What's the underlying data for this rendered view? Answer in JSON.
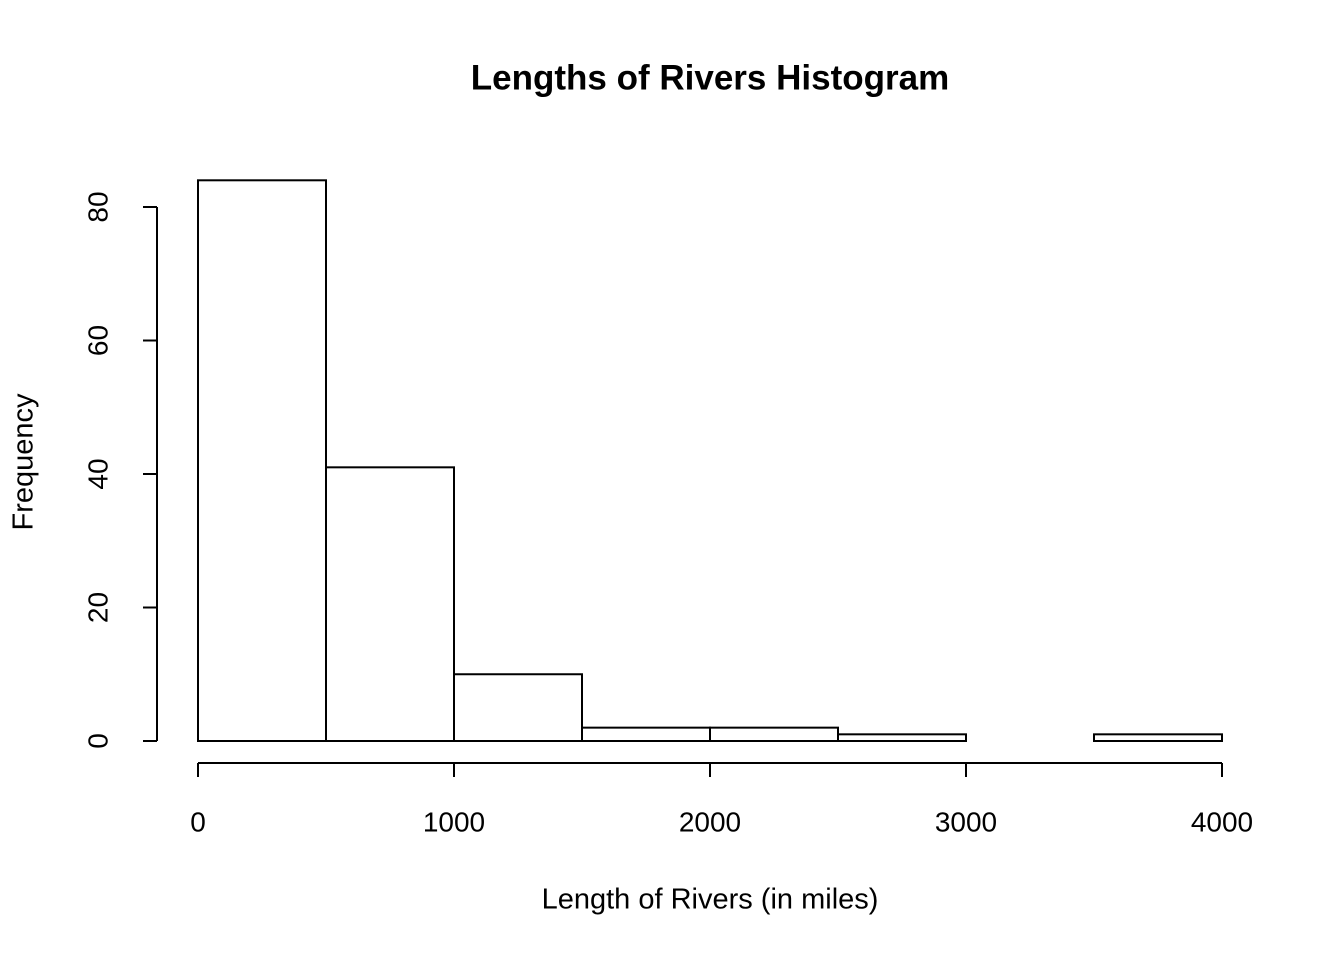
{
  "chart_data": {
    "type": "histogram",
    "title": "Lengths of Rivers Histogram",
    "x_label": "Length of Rivers (in miles)",
    "y_label": "Frequency",
    "bins": [
      0,
      500,
      1000,
      1500,
      2000,
      2500,
      3000,
      3500,
      4000
    ],
    "values": [
      84,
      41,
      10,
      2,
      2,
      1,
      0,
      1
    ],
    "color": "#ffffff",
    "edge_color": "#000000",
    "xlim": [
      0,
      4000
    ],
    "xticks": [
      0,
      1000,
      2000,
      3000,
      4000
    ],
    "ylim": [
      0,
      80
    ],
    "yticks": [
      0,
      20,
      40,
      60,
      80
    ],
    "grid": false
  }
}
